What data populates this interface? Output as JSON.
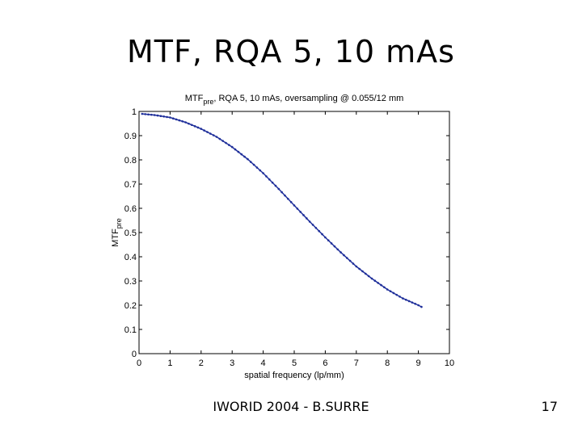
{
  "slide": {
    "title": "MTF, RQA 5, 10 mAs",
    "footer": "IWORID 2004 - B.SURRE",
    "page_number": "17"
  },
  "chart_data": {
    "type": "line",
    "title_main": "MTF",
    "title_sub": "pre",
    "title_rest": ", RQA 5, 10 mAs, oversampling @ 0.055/12 mm",
    "xlabel": "spatial frequency (lp/mm)",
    "ylabel_main": "MTF",
    "ylabel_sub": "pre",
    "xlim": [
      0,
      10
    ],
    "ylim": [
      0,
      1
    ],
    "xticks": [
      0,
      1,
      2,
      3,
      4,
      5,
      6,
      7,
      8,
      9,
      10
    ],
    "yticks": [
      0,
      0.1,
      0.2,
      0.3,
      0.4,
      0.5,
      0.6,
      0.7,
      0.8,
      0.9,
      1
    ],
    "grid": false,
    "line_color": "#1f2f9a",
    "series": [
      {
        "x": [
          0.1,
          0.5,
          1.0,
          1.5,
          2.0,
          2.5,
          3.0,
          3.5,
          4.0,
          4.5,
          5.0,
          5.5,
          6.0,
          6.5,
          7.0,
          7.5,
          8.0,
          8.5,
          9.0,
          9.1
        ],
        "y": [
          0.99,
          0.985,
          0.975,
          0.955,
          0.928,
          0.895,
          0.853,
          0.803,
          0.745,
          0.68,
          0.612,
          0.545,
          0.48,
          0.418,
          0.36,
          0.31,
          0.265,
          0.228,
          0.2,
          0.193
        ]
      }
    ]
  }
}
